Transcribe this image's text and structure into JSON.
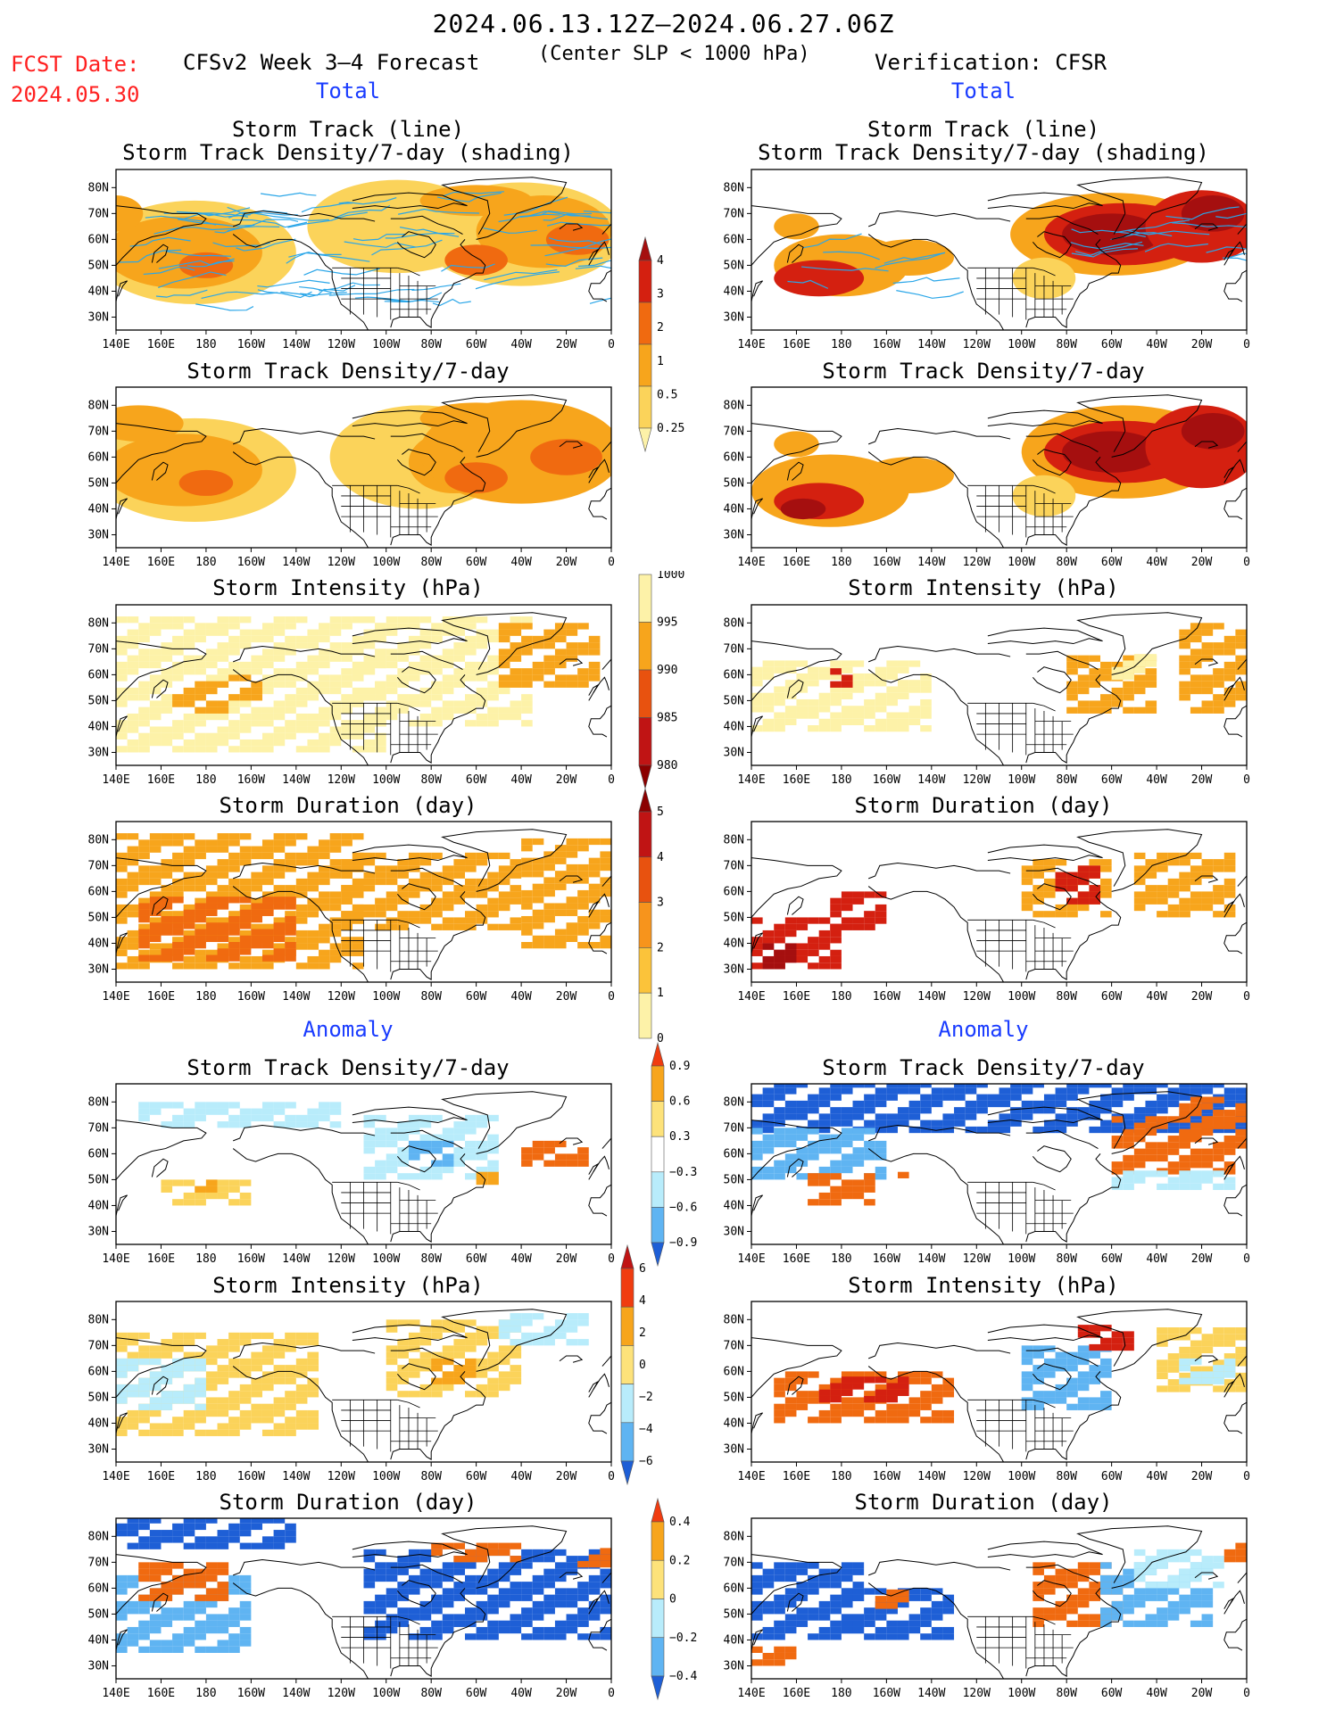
{
  "header": {
    "period": "2024.06.13.12Z–2024.06.27.06Z",
    "criterion": "(Center SLP < 1000 hPa)",
    "fcst_label": "FCST Date:",
    "fcst_date": "2024.05.30",
    "forecast_title": "CFSv2 Week 3–4 Forecast",
    "verification_title": "Verification: CFSR"
  },
  "sections": {
    "total_left": "Total",
    "total_right": "Total",
    "anomaly_left": "Anomaly",
    "anomaly_right": "Anomaly"
  },
  "panel_titles": {
    "track_line": "Storm Track (line)",
    "track_shading": "Storm Track Density/7-day (shading)",
    "density": "Storm Track Density/7-day",
    "intensity": "Storm Intensity (hPa)",
    "duration": "Storm Duration (day)"
  },
  "axes": {
    "lat_labels": [
      "80N",
      "70N",
      "60N",
      "50N",
      "40N",
      "30N"
    ],
    "lon_labels": [
      "140E",
      "160E",
      "180",
      "160W",
      "140W",
      "120W",
      "100W",
      "80W",
      "60W",
      "40W",
      "20W",
      "0"
    ]
  },
  "colorbars": {
    "total_density": {
      "labels": [
        "4",
        "3",
        "2",
        "1",
        "0.5",
        "0.25"
      ],
      "colors": [
        "#a50f0f",
        "#d42010",
        "#f06a10",
        "#f7a51c",
        "#fbd35a",
        "#fdf2a8"
      ]
    },
    "total_intensity": {
      "labels": [
        "1000",
        "995",
        "990",
        "985",
        "980"
      ],
      "colors": [
        "#fdf2a8",
        "#f7a51c",
        "#e8520f",
        "#c01414",
        "#8b0000"
      ]
    },
    "total_duration": {
      "labels": [
        "5",
        "4",
        "3",
        "2",
        "1",
        "0"
      ],
      "colors": [
        "#8b0000",
        "#c01414",
        "#e8520f",
        "#f7941c",
        "#fbc33a",
        "#fdf2a8"
      ]
    },
    "anom_density": {
      "labels": [
        "0.9",
        "0.6",
        "0.3",
        "−0.3",
        "−0.6",
        "−0.9"
      ],
      "colors": [
        "#f03c10",
        "#f7a51c",
        "#fde27a",
        "#ffffff",
        "#b8ecfb",
        "#5fb4f2",
        "#1e5fd6"
      ]
    },
    "anom_intensity": {
      "labels": [
        "6",
        "4",
        "2",
        "0",
        "−2",
        "−4",
        "−6"
      ],
      "colors": [
        "#c01414",
        "#f03c10",
        "#f7a51c",
        "#fde27a",
        "#b8ecfb",
        "#5fb4f2",
        "#1e5fd6"
      ]
    },
    "anom_duration": {
      "labels": [
        "0.4",
        "0.2",
        "0",
        "−0.2",
        "−0.4"
      ],
      "colors": [
        "#f03c10",
        "#f7a51c",
        "#fde27a",
        "#b8ecfb",
        "#5fb4f2",
        "#1e5fd6"
      ]
    }
  },
  "colors": {
    "track_line": "#2aa6e8",
    "forecast_date": "#ff2020",
    "section_label": "#1a3cff"
  }
}
